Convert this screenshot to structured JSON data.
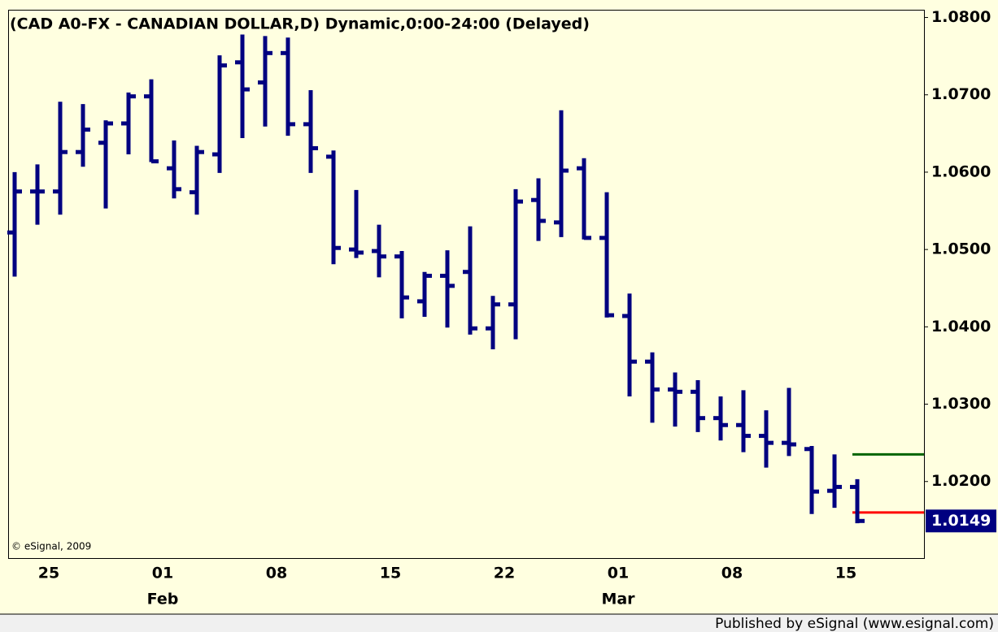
{
  "chart_data": {
    "type": "ohlc",
    "title": "(CAD A0-FX - CANADIAN DOLLAR,D) Dynamic,0:00-24:00 (Delayed)",
    "copyright": "© eSignal, 2009",
    "footer": "Published by eSignal (www.esignal.com)",
    "categories": [
      null,
      null,
      "25",
      null,
      null,
      null,
      null,
      "01",
      null,
      null,
      null,
      null,
      "08",
      null,
      null,
      null,
      null,
      "15",
      null,
      null,
      null,
      null,
      "22",
      null,
      null,
      null,
      null,
      "01",
      null,
      null,
      null,
      null,
      "08",
      null,
      null,
      null,
      null,
      "15"
    ],
    "months": [
      null,
      null,
      null,
      null,
      null,
      null,
      null,
      "Feb",
      null,
      null,
      null,
      null,
      null,
      null,
      null,
      null,
      null,
      null,
      null,
      null,
      null,
      null,
      null,
      null,
      null,
      null,
      null,
      "Mar",
      null,
      null,
      null,
      null,
      null,
      null,
      null,
      null,
      null,
      null
    ],
    "series": [
      {
        "color": "#000080",
        "open": [
          1.0522,
          1.0575,
          1.0575,
          1.0626,
          1.0638,
          1.0663,
          1.0698,
          1.0605,
          1.0574,
          1.0623,
          1.0742,
          1.0716,
          1.0754,
          1.0662,
          1.062,
          1.05,
          1.0498,
          1.0491,
          1.0433,
          1.0466,
          1.0471,
          1.0398,
          1.0429,
          1.0564,
          1.0535,
          1.0605,
          1.0515,
          1.0414,
          1.0355,
          1.0319,
          1.0316,
          1.0282,
          1.0273,
          1.0259,
          1.025,
          1.0242,
          1.0188,
          1.0193
        ],
        "high": [
          1.06,
          1.061,
          1.0691,
          1.0688,
          1.0667,
          1.0703,
          1.072,
          1.0641,
          1.0634,
          1.0751,
          1.0778,
          1.0776,
          1.0774,
          1.0706,
          1.0628,
          1.0577,
          1.0532,
          1.0498,
          1.0471,
          1.0499,
          1.053,
          1.044,
          1.0578,
          1.0592,
          1.068,
          1.0618,
          1.0574,
          1.0443,
          1.0367,
          1.0341,
          1.0331,
          1.031,
          1.0318,
          1.0292,
          1.0321,
          1.0246,
          1.0235,
          1.0203
        ],
        "low": [
          1.0465,
          1.0532,
          1.0545,
          1.0607,
          1.0553,
          1.0623,
          1.0613,
          1.0566,
          1.0545,
          1.0599,
          1.0644,
          1.0659,
          1.0647,
          1.0599,
          1.0481,
          1.0489,
          1.0464,
          1.0411,
          1.0413,
          1.0399,
          1.039,
          1.0371,
          1.0384,
          1.0511,
          1.0516,
          1.0513,
          1.0412,
          1.031,
          1.0276,
          1.0271,
          1.0264,
          1.0253,
          1.0238,
          1.0218,
          1.0233,
          1.0158,
          1.0166,
          1.0146
        ],
        "close": [
          1.0575,
          1.0575,
          1.0626,
          1.0655,
          1.0663,
          1.0698,
          1.0614,
          1.0578,
          1.0626,
          1.0738,
          1.0707,
          1.0754,
          1.0662,
          1.0631,
          1.0502,
          1.0496,
          1.0491,
          1.0438,
          1.0466,
          1.0453,
          1.0398,
          1.0429,
          1.0562,
          1.0537,
          1.0602,
          1.0515,
          1.0415,
          1.0355,
          1.0319,
          1.0316,
          1.0282,
          1.0273,
          1.0259,
          1.025,
          1.0248,
          1.0187,
          1.0193,
          1.0149
        ]
      }
    ],
    "levels": [
      {
        "value": 1.0235,
        "color": "#006400"
      },
      {
        "value": 1.016,
        "color": "#ff0000"
      }
    ],
    "last_price": {
      "value": 1.0149,
      "label": "1.0149"
    },
    "ylim": [
      1.0101,
      1.081
    ],
    "yticks": [
      {
        "value": 1.08,
        "label": "1.0800"
      },
      {
        "value": 1.07,
        "label": "1.0700"
      },
      {
        "value": 1.06,
        "label": "1.0600"
      },
      {
        "value": 1.05,
        "label": "1.0500"
      },
      {
        "value": 1.04,
        "label": "1.0400"
      },
      {
        "value": 1.03,
        "label": "1.0300"
      },
      {
        "value": 1.02,
        "label": "1.0200"
      }
    ]
  }
}
